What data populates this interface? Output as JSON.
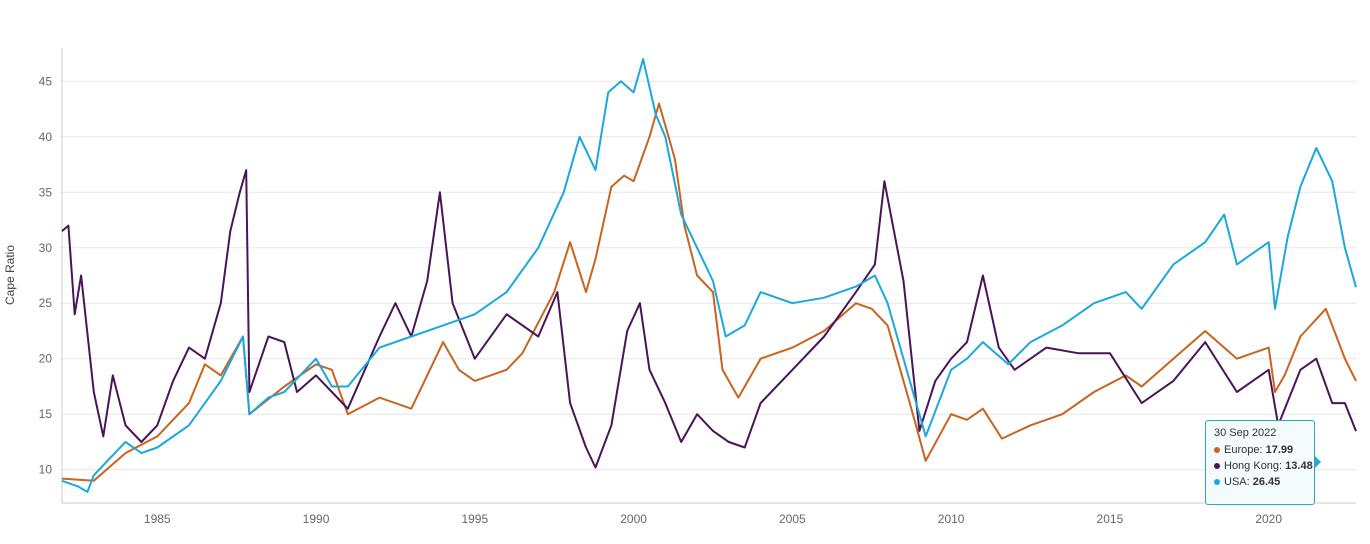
{
  "chart_data": {
    "type": "line",
    "ylabel": "Cape Ratio",
    "xlim": [
      1982.0,
      2022.75
    ],
    "ylim": [
      7,
      48
    ],
    "y_ticks": [
      10,
      15,
      20,
      25,
      30,
      35,
      40,
      45
    ],
    "x_ticks": [
      1985,
      1990,
      1995,
      2000,
      2005,
      2010,
      2015,
      2020
    ],
    "grid": "horizontal",
    "series": [
      {
        "name": "Europe",
        "color": "#c8641e",
        "points": [
          [
            1982.0,
            9.2
          ],
          [
            1983.0,
            9.0
          ],
          [
            1984.0,
            11.5
          ],
          [
            1985.0,
            13.0
          ],
          [
            1986.0,
            16.0
          ],
          [
            1986.5,
            19.5
          ],
          [
            1987.0,
            18.5
          ],
          [
            1987.7,
            22.0
          ],
          [
            1987.9,
            15.0
          ],
          [
            1989.0,
            17.5
          ],
          [
            1990.0,
            19.5
          ],
          [
            1990.5,
            19.0
          ],
          [
            1991.0,
            15.0
          ],
          [
            1992.0,
            16.5
          ],
          [
            1993.0,
            15.5
          ],
          [
            1994.0,
            21.5
          ],
          [
            1994.5,
            19.0
          ],
          [
            1995.0,
            18.0
          ],
          [
            1996.0,
            19.0
          ],
          [
            1996.5,
            20.5
          ],
          [
            1997.5,
            26.0
          ],
          [
            1998.0,
            30.5
          ],
          [
            1998.5,
            26.0
          ],
          [
            1998.8,
            29.0
          ],
          [
            1999.3,
            35.5
          ],
          [
            1999.7,
            36.5
          ],
          [
            2000.0,
            36.0
          ],
          [
            2000.5,
            40.0
          ],
          [
            2000.8,
            43.0
          ],
          [
            2001.3,
            38.0
          ],
          [
            2001.6,
            32.0
          ],
          [
            2002.0,
            27.5
          ],
          [
            2002.5,
            26.0
          ],
          [
            2002.8,
            19.0
          ],
          [
            2003.3,
            16.5
          ],
          [
            2004.0,
            20.0
          ],
          [
            2005.0,
            21.0
          ],
          [
            2006.0,
            22.5
          ],
          [
            2007.0,
            25.0
          ],
          [
            2007.5,
            24.5
          ],
          [
            2008.0,
            23.0
          ],
          [
            2008.7,
            16.0
          ],
          [
            2009.2,
            10.8
          ],
          [
            2010.0,
            15.0
          ],
          [
            2010.5,
            14.5
          ],
          [
            2011.0,
            15.5
          ],
          [
            2011.6,
            12.8
          ],
          [
            2012.5,
            14.0
          ],
          [
            2013.5,
            15.0
          ],
          [
            2014.5,
            17.0
          ],
          [
            2015.5,
            18.5
          ],
          [
            2016.0,
            17.5
          ],
          [
            2017.0,
            20.0
          ],
          [
            2018.0,
            22.5
          ],
          [
            2019.0,
            20.0
          ],
          [
            2020.0,
            21.0
          ],
          [
            2020.2,
            17.0
          ],
          [
            2020.5,
            18.5
          ],
          [
            2021.0,
            22.0
          ],
          [
            2021.8,
            24.5
          ],
          [
            2022.0,
            23.0
          ],
          [
            2022.4,
            20.0
          ],
          [
            2022.75,
            17.99
          ]
        ]
      },
      {
        "name": "Hong Kong",
        "color": "#4a1458",
        "points": [
          [
            1982.0,
            31.5
          ],
          [
            1982.2,
            32.0
          ],
          [
            1982.4,
            24.0
          ],
          [
            1982.6,
            27.5
          ],
          [
            1983.0,
            17.0
          ],
          [
            1983.3,
            13.0
          ],
          [
            1983.6,
            18.5
          ],
          [
            1984.0,
            14.0
          ],
          [
            1984.5,
            12.5
          ],
          [
            1985.0,
            14.0
          ],
          [
            1985.5,
            18.0
          ],
          [
            1986.0,
            21.0
          ],
          [
            1986.5,
            20.0
          ],
          [
            1987.0,
            25.0
          ],
          [
            1987.3,
            31.5
          ],
          [
            1987.6,
            35.0
          ],
          [
            1987.8,
            37.0
          ],
          [
            1987.9,
            17.0
          ],
          [
            1988.5,
            22.0
          ],
          [
            1989.0,
            21.5
          ],
          [
            1989.4,
            17.0
          ],
          [
            1990.0,
            18.5
          ],
          [
            1990.5,
            17.0
          ],
          [
            1991.0,
            15.5
          ],
          [
            1992.0,
            22.0
          ],
          [
            1992.5,
            25.0
          ],
          [
            1993.0,
            22.0
          ],
          [
            1993.5,
            27.0
          ],
          [
            1993.9,
            35.0
          ],
          [
            1994.3,
            25.0
          ],
          [
            1995.0,
            20.0
          ],
          [
            1996.0,
            24.0
          ],
          [
            1997.0,
            22.0
          ],
          [
            1997.6,
            26.0
          ],
          [
            1998.0,
            16.0
          ],
          [
            1998.5,
            12.0
          ],
          [
            1998.8,
            10.2
          ],
          [
            1999.3,
            14.0
          ],
          [
            1999.8,
            22.5
          ],
          [
            2000.2,
            25.0
          ],
          [
            2000.5,
            19.0
          ],
          [
            2001.0,
            16.0
          ],
          [
            2001.5,
            12.5
          ],
          [
            2002.0,
            15.0
          ],
          [
            2002.5,
            13.5
          ],
          [
            2003.0,
            12.5
          ],
          [
            2003.5,
            12.0
          ],
          [
            2004.0,
            16.0
          ],
          [
            2005.0,
            19.0
          ],
          [
            2006.0,
            22.0
          ],
          [
            2007.0,
            26.0
          ],
          [
            2007.6,
            28.5
          ],
          [
            2007.9,
            36.0
          ],
          [
            2008.5,
            27.0
          ],
          [
            2009.0,
            13.5
          ],
          [
            2009.5,
            18.0
          ],
          [
            2010.0,
            20.0
          ],
          [
            2010.5,
            21.5
          ],
          [
            2011.0,
            27.5
          ],
          [
            2011.5,
            21.0
          ],
          [
            2012.0,
            19.0
          ],
          [
            2013.0,
            21.0
          ],
          [
            2014.0,
            20.5
          ],
          [
            2015.0,
            20.5
          ],
          [
            2016.0,
            16.0
          ],
          [
            2017.0,
            18.0
          ],
          [
            2018.0,
            21.5
          ],
          [
            2019.0,
            17.0
          ],
          [
            2020.0,
            19.0
          ],
          [
            2020.3,
            14.0
          ],
          [
            2021.0,
            19.0
          ],
          [
            2021.5,
            20.0
          ],
          [
            2022.0,
            16.0
          ],
          [
            2022.4,
            16.0
          ],
          [
            2022.75,
            13.48
          ]
        ]
      },
      {
        "name": "USA",
        "color": "#1ba8dc",
        "points": [
          [
            1982.0,
            9.0
          ],
          [
            1982.5,
            8.5
          ],
          [
            1982.8,
            8.0
          ],
          [
            1983.0,
            9.5
          ],
          [
            1983.5,
            11.0
          ],
          [
            1984.0,
            12.5
          ],
          [
            1984.5,
            11.5
          ],
          [
            1985.0,
            12.0
          ],
          [
            1986.0,
            14.0
          ],
          [
            1986.5,
            16.0
          ],
          [
            1987.0,
            18.0
          ],
          [
            1987.7,
            22.0
          ],
          [
            1987.9,
            15.0
          ],
          [
            1988.5,
            16.5
          ],
          [
            1989.0,
            17.0
          ],
          [
            1990.0,
            20.0
          ],
          [
            1990.5,
            17.5
          ],
          [
            1991.0,
            17.5
          ],
          [
            1992.0,
            21.0
          ],
          [
            1993.0,
            22.0
          ],
          [
            1994.0,
            23.0
          ],
          [
            1995.0,
            24.0
          ],
          [
            1996.0,
            26.0
          ],
          [
            1997.0,
            30.0
          ],
          [
            1997.8,
            35.0
          ],
          [
            1998.3,
            40.0
          ],
          [
            1998.8,
            37.0
          ],
          [
            1999.2,
            44.0
          ],
          [
            1999.6,
            45.0
          ],
          [
            2000.0,
            44.0
          ],
          [
            2000.3,
            47.0
          ],
          [
            2000.7,
            42.0
          ],
          [
            2001.0,
            40.0
          ],
          [
            2001.5,
            33.0
          ],
          [
            2002.0,
            30.0
          ],
          [
            2002.5,
            27.0
          ],
          [
            2002.9,
            22.0
          ],
          [
            2003.5,
            23.0
          ],
          [
            2004.0,
            26.0
          ],
          [
            2005.0,
            25.0
          ],
          [
            2006.0,
            25.5
          ],
          [
            2007.0,
            26.5
          ],
          [
            2007.6,
            27.5
          ],
          [
            2008.0,
            25.0
          ],
          [
            2008.7,
            18.0
          ],
          [
            2009.2,
            13.0
          ],
          [
            2010.0,
            19.0
          ],
          [
            2010.5,
            20.0
          ],
          [
            2011.0,
            21.5
          ],
          [
            2011.8,
            19.5
          ],
          [
            2012.5,
            21.5
          ],
          [
            2013.5,
            23.0
          ],
          [
            2014.5,
            25.0
          ],
          [
            2015.5,
            26.0
          ],
          [
            2016.0,
            24.5
          ],
          [
            2017.0,
            28.5
          ],
          [
            2018.0,
            30.5
          ],
          [
            2018.6,
            33.0
          ],
          [
            2019.0,
            28.5
          ],
          [
            2020.0,
            30.5
          ],
          [
            2020.2,
            24.5
          ],
          [
            2020.6,
            31.0
          ],
          [
            2021.0,
            35.5
          ],
          [
            2021.5,
            39.0
          ],
          [
            2022.0,
            36.0
          ],
          [
            2022.4,
            30.0
          ],
          [
            2022.75,
            26.45
          ]
        ]
      }
    ],
    "tooltip": {
      "date": "30 Sep 2022",
      "items": [
        {
          "label": "Europe: ",
          "value": "17.99",
          "color": "#c8641e"
        },
        {
          "label": "Hong Kong: ",
          "value": "13.48",
          "color": "#4a1458"
        },
        {
          "label": "USA: ",
          "value": "26.45",
          "color": "#1ba8dc"
        }
      ]
    }
  }
}
